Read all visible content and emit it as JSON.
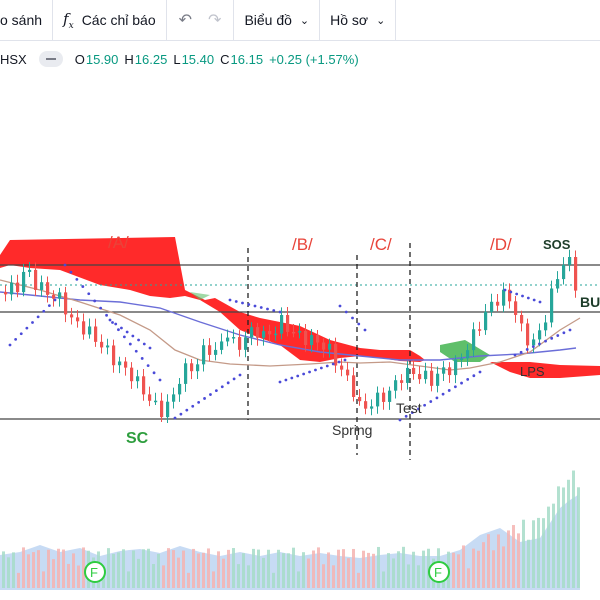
{
  "toolbar": {
    "compare_label": "o sánh",
    "indicators_label": "Các chỉ báo",
    "chart_type_label": "Biểu đồ",
    "profile_label": "Hồ sơ"
  },
  "legend": {
    "symbol": "HSX",
    "o_label": "O",
    "o_value": "15.90",
    "h_label": "H",
    "h_value": "16.25",
    "l_label": "L",
    "l_value": "15.40",
    "c_label": "C",
    "c_value": "16.15",
    "change": "+0.25 (+1.57%)"
  },
  "annotations": {
    "phase_a": "/A/",
    "phase_b": "/B/",
    "phase_c": "/C/",
    "phase_d": "/D/",
    "sc": "SC",
    "spring": "Spring",
    "test": "Test",
    "sos": "SOS",
    "lps": "LPS",
    "bu": "BU",
    "fund_marker": "F"
  },
  "colors": {
    "up": "#26a69a",
    "down": "#ef5350",
    "cloud_red": "#ff2a2a",
    "cloud_green": "#5fbf6a",
    "annotation_red": "#e8443a",
    "annotation_green": "#2e9e3e",
    "ma_blue": "#6b6ed8",
    "ma_brown": "#c49a88",
    "psar": "#4a4ad8"
  },
  "chart_data": {
    "type": "candlestick",
    "symbol": "HSX",
    "last": {
      "open": 15.9,
      "high": 16.25,
      "low": 15.4,
      "close": 16.15
    }
  }
}
